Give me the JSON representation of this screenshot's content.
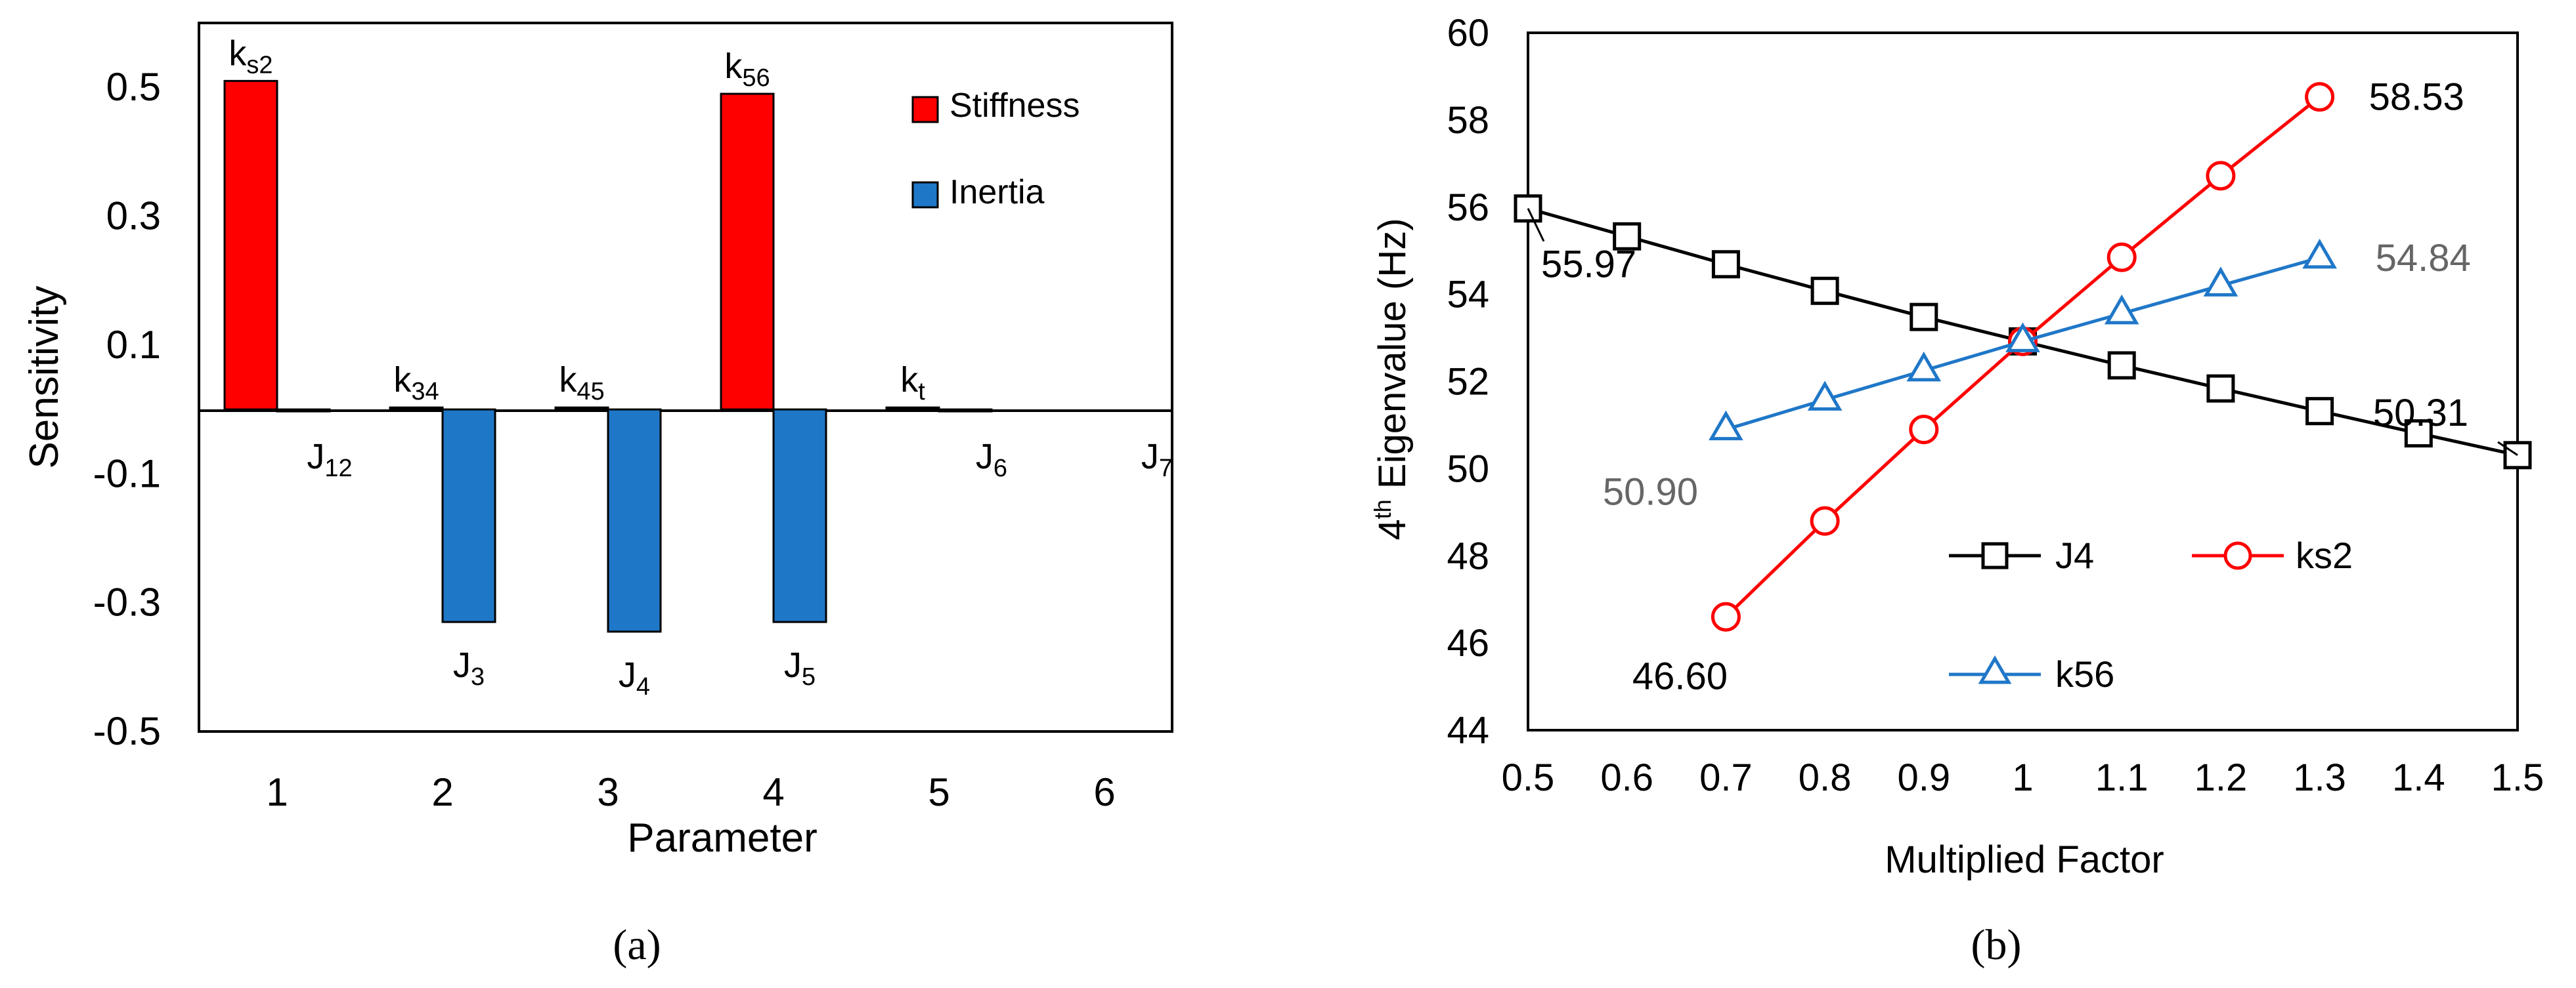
{
  "chart_data": [
    {
      "panel": "a",
      "type": "bar",
      "caption": "(a)",
      "xlabel": "Parameter",
      "ylabel": "Sensitivity",
      "ylim": [
        -0.5,
        0.6
      ],
      "yticks": [
        -0.5,
        -0.3,
        -0.1,
        0.1,
        0.3,
        0.5
      ],
      "ytick_labels": [
        "-0.5",
        "-0.3",
        "-0.1",
        "0.1",
        "0.3",
        "0.5"
      ],
      "categories": [
        "1",
        "2",
        "3",
        "4",
        "5",
        "6"
      ],
      "legend_position": "top-right",
      "series": [
        {
          "name": "Stiffness",
          "color": "#ff0000",
          "values": [
            0.51,
            0.003,
            0.003,
            0.49,
            0.003,
            0.0
          ],
          "bar_labels": [
            {
              "main": "k",
              "sub": "s2"
            },
            {
              "main": "k",
              "sub": "34"
            },
            {
              "main": "k",
              "sub": "45"
            },
            {
              "main": "k",
              "sub": "56"
            },
            {
              "main": "k",
              "sub": "t"
            },
            null
          ]
        },
        {
          "name": "Inertia",
          "color": "#1f77c8",
          "values": [
            -0.003,
            -0.33,
            -0.345,
            -0.33,
            -0.003,
            0.0
          ],
          "bar_labels": [
            {
              "main": "J",
              "sub": "12"
            },
            {
              "main": "J",
              "sub": "3"
            },
            {
              "main": "J",
              "sub": "4"
            },
            {
              "main": "J",
              "sub": "5"
            },
            {
              "main": "J",
              "sub": "6"
            },
            {
              "main": "J",
              "sub": "7"
            }
          ]
        }
      ]
    },
    {
      "panel": "b",
      "type": "line",
      "caption": "(b)",
      "xlabel": "Multiplied Factor",
      "ylabel": {
        "pre": "4",
        "sup": "th",
        "post": " Eigenvalue (Hz)"
      },
      "xlim": [
        0.5,
        1.5
      ],
      "ylim": [
        44,
        60
      ],
      "xticks": [
        0.5,
        0.6,
        0.7,
        0.8,
        0.9,
        1.0,
        1.1,
        1.2,
        1.3,
        1.4,
        1.5
      ],
      "xtick_labels": [
        "0.5",
        "0.6",
        "0.7",
        "0.8",
        "0.9",
        "1",
        "1.1",
        "1.2",
        "1.3",
        "1.4",
        "1.5"
      ],
      "yticks": [
        44,
        46,
        48,
        50,
        52,
        54,
        56,
        58,
        60
      ],
      "ytick_labels": [
        "44",
        "46",
        "48",
        "50",
        "52",
        "54",
        "56",
        "58",
        "60"
      ],
      "series": [
        {
          "name": "J4",
          "color": "#000000",
          "marker": "square",
          "x": [
            0.5,
            0.6,
            0.7,
            0.8,
            0.9,
            1.0,
            1.1,
            1.2,
            1.3,
            1.4,
            1.5
          ],
          "y": [
            55.97,
            55.33,
            54.69,
            54.08,
            53.48,
            52.92,
            52.37,
            51.84,
            51.32,
            50.81,
            50.31
          ]
        },
        {
          "name": "ks2",
          "color": "#ff0000",
          "marker": "circle",
          "x": [
            0.7,
            0.8,
            0.9,
            1.0,
            1.1,
            1.2,
            1.3
          ],
          "y": [
            46.6,
            48.8,
            50.9,
            52.92,
            54.85,
            56.72,
            58.53
          ]
        },
        {
          "name": "k56",
          "color": "#1f77c8",
          "marker": "triangle",
          "x": [
            0.7,
            0.8,
            0.9,
            1.0,
            1.1,
            1.2,
            1.3
          ],
          "y": [
            50.9,
            51.58,
            52.25,
            52.92,
            53.56,
            54.2,
            54.84
          ]
        }
      ],
      "annotations": [
        {
          "text": "55.97",
          "x": 0.5,
          "y": 55.97,
          "color": "#000000"
        },
        {
          "text": "50.31",
          "x": 1.5,
          "y": 50.31,
          "color": "#000000"
        },
        {
          "text": "58.53",
          "x": 1.3,
          "y": 58.53,
          "color": "#000000"
        },
        {
          "text": "46.60",
          "x": 0.7,
          "y": 46.6,
          "color": "#000000"
        },
        {
          "text": "54.84",
          "x": 1.3,
          "y": 54.84,
          "color": "#666666"
        },
        {
          "text": "50.90",
          "x": 0.7,
          "y": 50.9,
          "color": "#666666"
        }
      ]
    }
  ]
}
